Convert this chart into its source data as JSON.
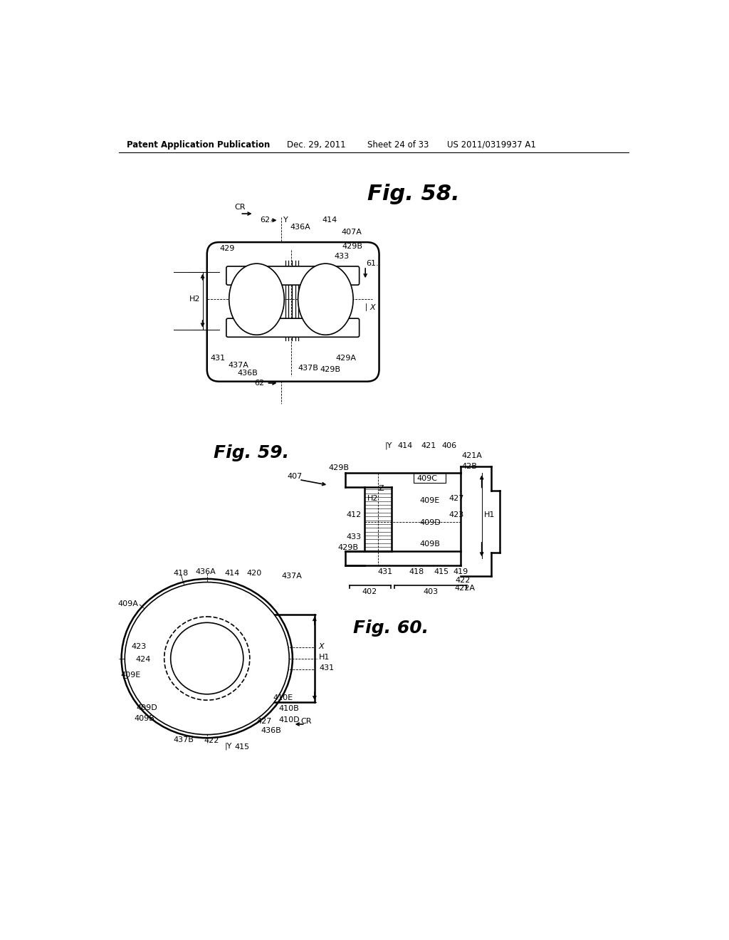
{
  "bg_color": "#ffffff",
  "line_color": "#000000",
  "header_text": "Patent Application Publication",
  "header_date": "Dec. 29, 2011",
  "header_sheet": "Sheet 24 of 33",
  "header_patent": "US 2011/0319937 A1",
  "fig58_title": "Fig. 58.",
  "fig59_title": "Fig. 59.",
  "fig60_title": "Fig. 60."
}
